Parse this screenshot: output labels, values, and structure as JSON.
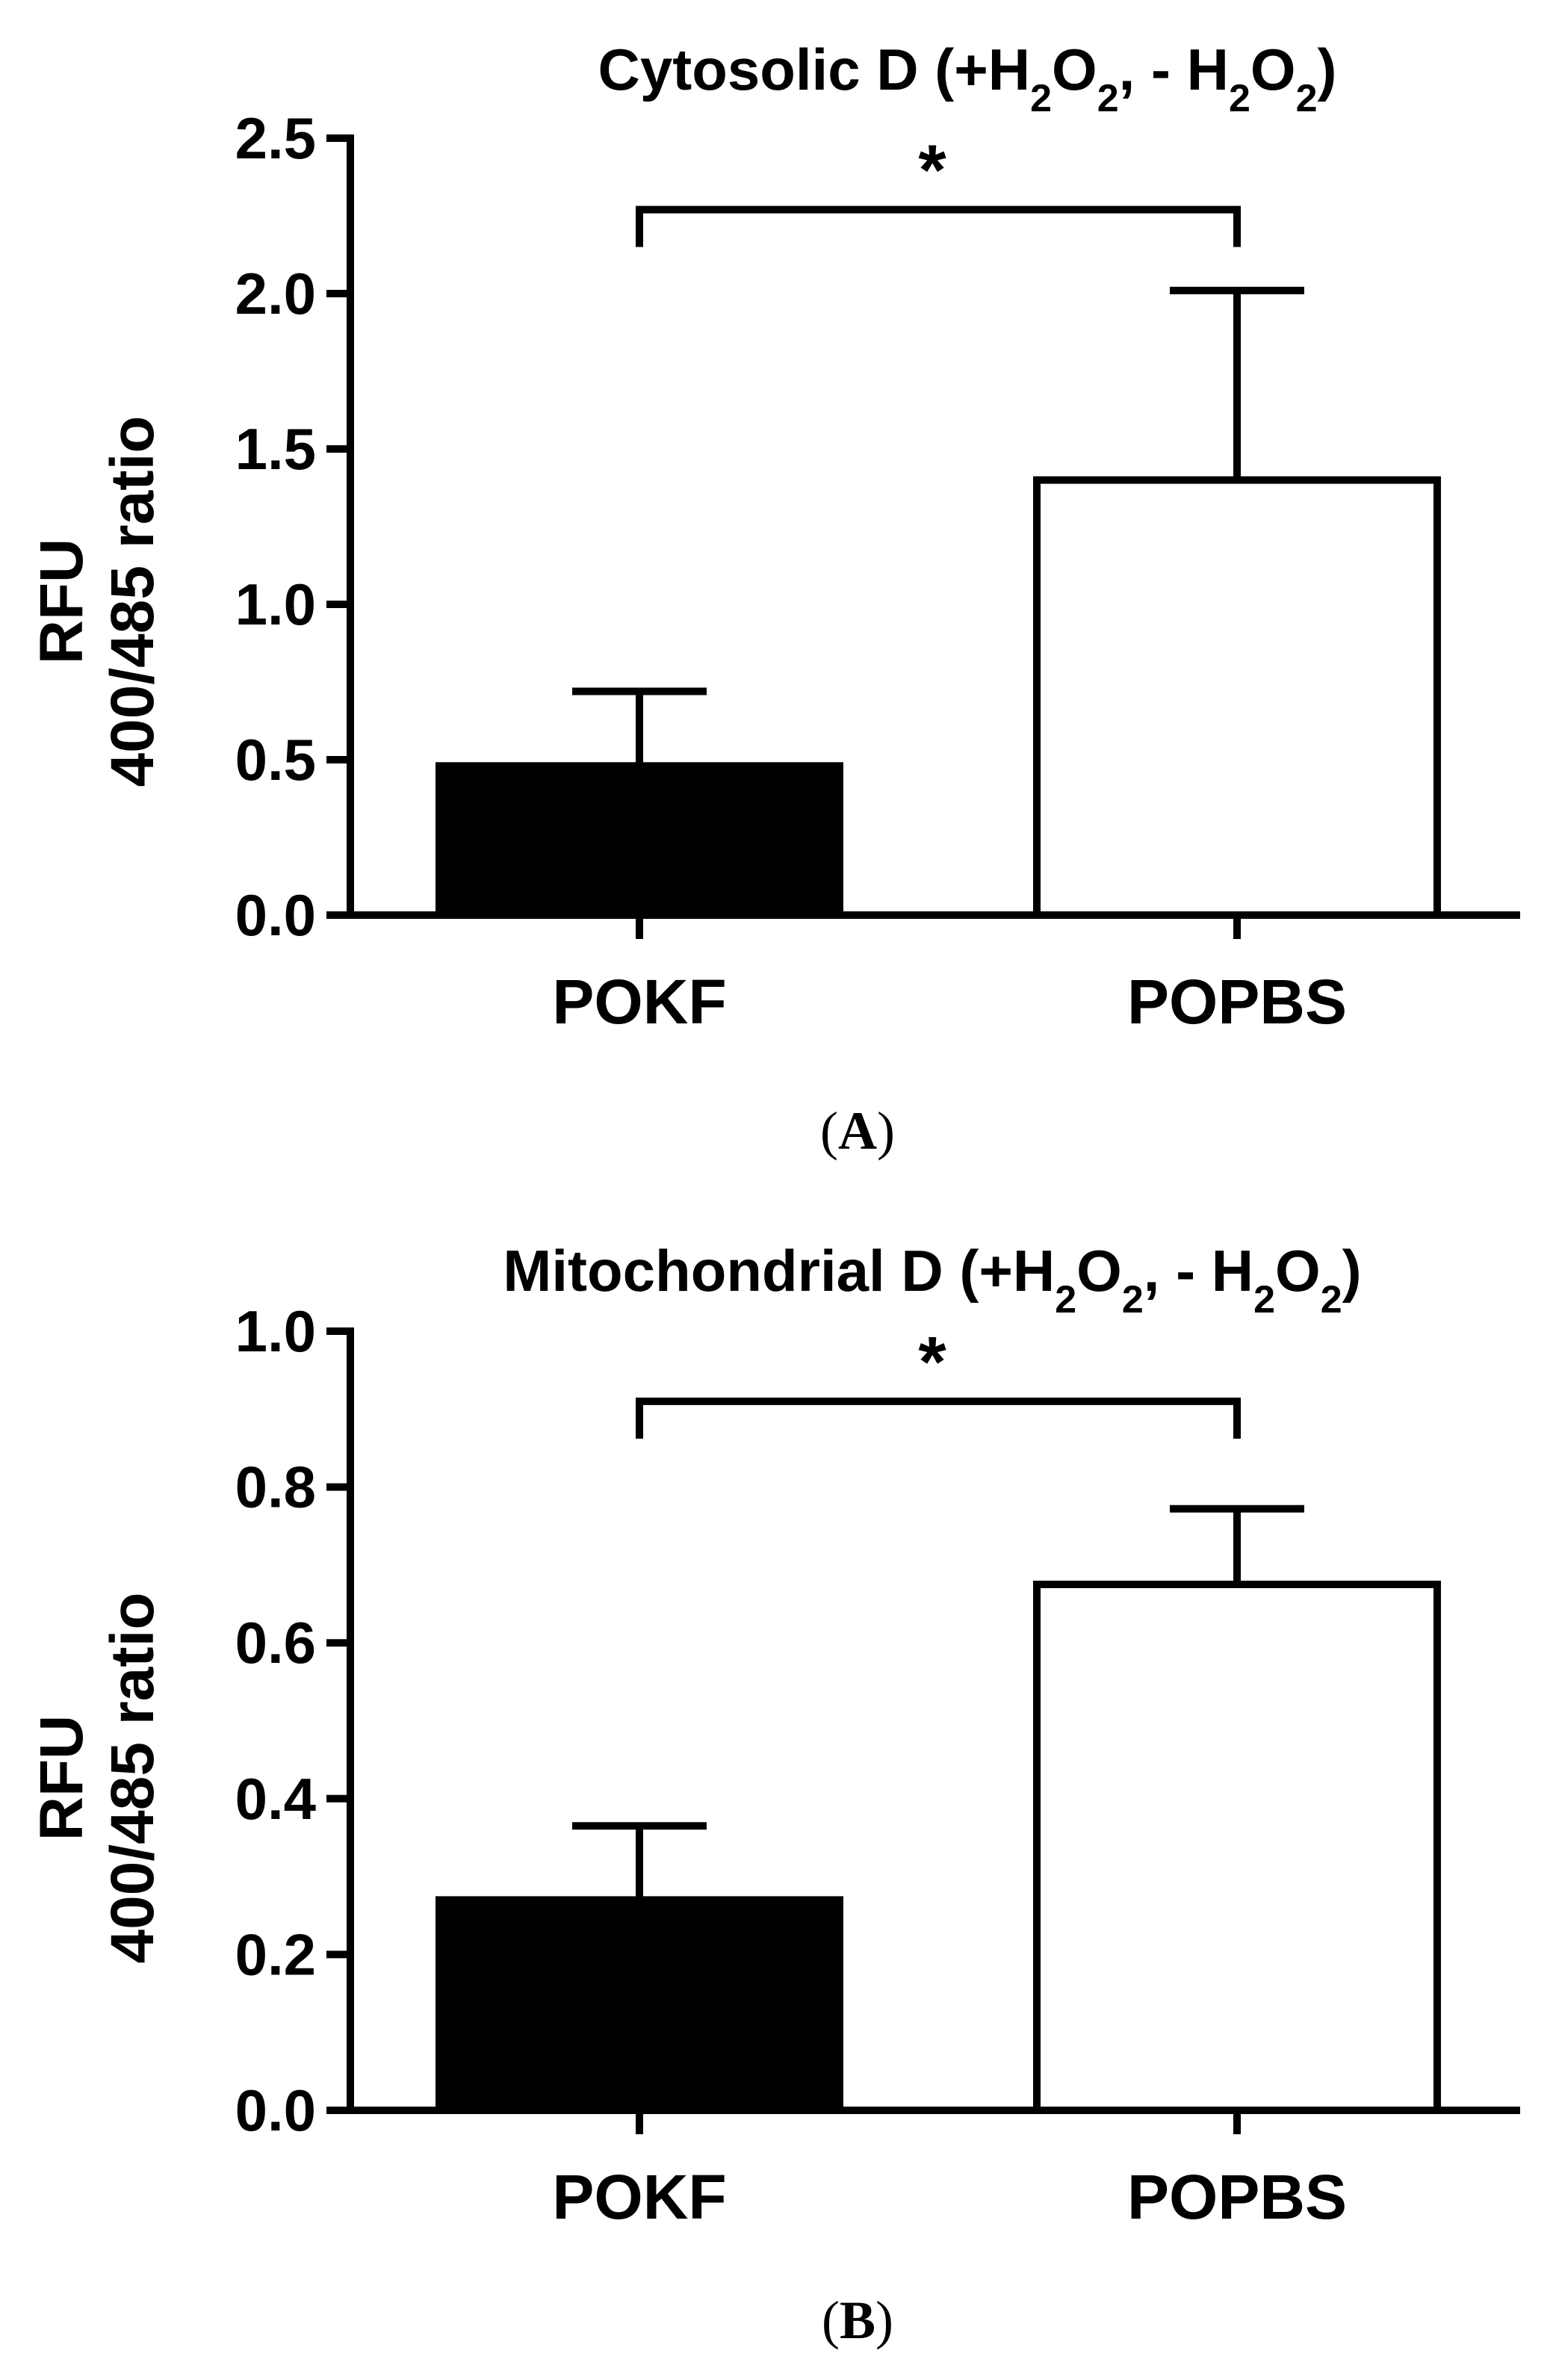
{
  "chart_data": [
    {
      "type": "bar",
      "panel": "A",
      "title_parts": [
        "Cytosolic D (+H",
        "2",
        "O",
        "2",
        ", - H",
        "2",
        "O",
        "2",
        ")"
      ],
      "ylabel_line1": "RFU",
      "ylabel_line2": "400/485 ratio",
      "xlabel": "",
      "categories": [
        "POKF",
        "POPBS"
      ],
      "values": [
        0.48,
        1.4
      ],
      "errors": [
        0.24,
        0.61
      ],
      "bar_fills": [
        "#000000",
        "#ffffff"
      ],
      "ylim": [
        0,
        2.5
      ],
      "yticks": [
        "0.0",
        "0.5",
        "1.0",
        "1.5",
        "2.0",
        "2.5"
      ],
      "significance": {
        "between": [
          "POKF",
          "POPBS"
        ],
        "label": "*",
        "bracket_y": 2.27
      },
      "grid": false,
      "legend": "none"
    },
    {
      "type": "bar",
      "panel": "B",
      "title_parts": [
        "Mitochondrial D (+H",
        "2",
        "O",
        "2",
        ", - H",
        "2",
        "O",
        "2",
        ")"
      ],
      "ylabel_line1": "RFU",
      "ylabel_line2": "400/485 ratio",
      "xlabel": "",
      "categories": [
        "POKF",
        "POPBS"
      ],
      "values": [
        0.27,
        0.675
      ],
      "errors": [
        0.095,
        0.097
      ],
      "bar_fills": [
        "#000000",
        "#ffffff"
      ],
      "ylim": [
        0,
        1.0
      ],
      "yticks": [
        "0.0",
        "0.2",
        "0.4",
        "0.6",
        "0.8",
        "1.0"
      ],
      "significance": {
        "between": [
          "POKF",
          "POPBS"
        ],
        "label": "*",
        "bracket_y": 0.91
      },
      "grid": false,
      "legend": "none"
    }
  ],
  "panel_labels": [
    {
      "open": "(",
      "letter": "A",
      "close": ")"
    },
    {
      "open": "(",
      "letter": "B",
      "close": ")"
    }
  ]
}
